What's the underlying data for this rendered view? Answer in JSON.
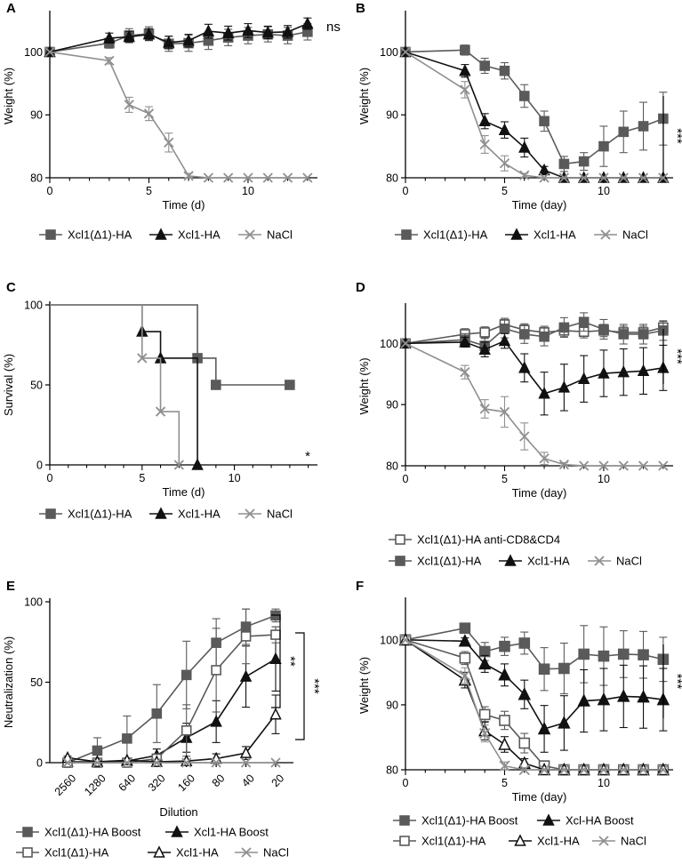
{
  "colors": {
    "dark": "#5a5a5a",
    "black": "#111111",
    "grey": "#8f8f8f"
  },
  "chart_data": [
    {
      "panel": "A",
      "type": "line",
      "xlabel": "Time (d)",
      "ylabel": "Weight (%)",
      "xlim": [
        0,
        13.5
      ],
      "ylim": [
        80,
        106
      ],
      "xticks": [
        0,
        5,
        10
      ],
      "yticks": [
        80,
        90,
        100
      ],
      "series": [
        {
          "name": "Xcl1(Δ1)-HA",
          "marker": "filled-square",
          "color": "dark",
          "x": [
            0,
            3,
            4,
            5,
            6,
            7,
            8,
            9,
            10,
            11,
            12,
            13
          ],
          "y": [
            100,
            101.4,
            102.6,
            102.9,
            101.3,
            101.4,
            101.8,
            102.3,
            102.6,
            102.8,
            102.6,
            103.2
          ],
          "err": [
            0,
            0.8,
            1.1,
            1.1,
            1.2,
            1.3,
            1.4,
            1.3,
            1.3,
            1.2,
            1.3,
            1.3
          ]
        },
        {
          "name": "Xcl1-HA",
          "marker": "filled-triangle",
          "color": "black",
          "x": [
            0,
            3,
            4,
            5,
            6,
            7,
            8,
            9,
            10,
            11,
            12,
            13
          ],
          "y": [
            100,
            102.2,
            102.4,
            102.8,
            101.5,
            101.8,
            103.3,
            103.0,
            103.4,
            103.1,
            103.2,
            104.5
          ],
          "err": [
            0,
            0.8,
            0.9,
            0.9,
            1.0,
            1.0,
            1.1,
            1.1,
            1.1,
            1.0,
            1.0,
            0.9
          ]
        },
        {
          "name": "NaCl",
          "marker": "x",
          "color": "grey",
          "x": [
            0,
            3,
            4,
            5,
            6,
            7,
            8,
            9,
            10,
            11,
            12,
            13
          ],
          "y": [
            100,
            98.6,
            91.6,
            90.2,
            85.6,
            80.3,
            80,
            80,
            80,
            80,
            80,
            80
          ],
          "err": [
            0,
            0.5,
            1.2,
            1.1,
            1.5,
            0.4,
            0,
            0,
            0,
            0,
            0,
            0
          ]
        }
      ],
      "annotation": "ns",
      "legend": [
        "Xcl1(Δ1)-HA",
        "Xcl1-HA",
        "NaCl"
      ]
    },
    {
      "panel": "B",
      "type": "line",
      "xlabel": "Time (day)",
      "ylabel": "Weight (%)",
      "xlim": [
        0,
        13.5
      ],
      "ylim": [
        80,
        106
      ],
      "xticks": [
        0,
        5,
        10
      ],
      "yticks": [
        80,
        90,
        100
      ],
      "series": [
        {
          "name": "Xcl1(Δ1)-HA",
          "marker": "filled-square",
          "color": "dark",
          "x": [
            0,
            3,
            4,
            5,
            6,
            7,
            8,
            9,
            10,
            11,
            12,
            13
          ],
          "y": [
            100,
            100.3,
            97.8,
            97,
            93,
            89,
            82.2,
            82.6,
            85,
            87.3,
            88.2,
            89.4
          ],
          "err": [
            0,
            0.8,
            1.2,
            1.3,
            1.8,
            1.6,
            1.2,
            1.4,
            3.2,
            3.3,
            3.8,
            4.2
          ]
        },
        {
          "name": "Xcl1-HA",
          "marker": "filled-triangle",
          "color": "black",
          "x": [
            0,
            3,
            4,
            5,
            6,
            7,
            8,
            9,
            10,
            11,
            12,
            13
          ],
          "y": [
            100,
            97,
            89,
            87.6,
            84.8,
            81.2,
            80,
            80,
            80,
            80,
            80,
            80
          ],
          "err": [
            0,
            1,
            1.2,
            1.3,
            1.5,
            0.6,
            0,
            0,
            0,
            0,
            0,
            0
          ]
        },
        {
          "name": "NaCl",
          "marker": "x",
          "color": "grey",
          "x": [
            0,
            3,
            4,
            5,
            6,
            7,
            8,
            9,
            10,
            11,
            12,
            13
          ],
          "y": [
            100,
            94,
            85.3,
            82.3,
            80.4,
            80,
            80,
            80,
            80,
            80,
            80,
            80
          ],
          "err": [
            0,
            1.3,
            1.4,
            1.2,
            0.3,
            0,
            0,
            0,
            0,
            0,
            0,
            0
          ]
        }
      ],
      "annotation": "***",
      "legend": [
        "Xcl1(Δ1)-HA",
        "Xcl1-HA",
        "NaCl"
      ]
    },
    {
      "panel": "C",
      "type": "step",
      "xlabel": "Time (d)",
      "ylabel": "Survival (%)",
      "xlim": [
        0,
        14.5
      ],
      "ylim": [
        0,
        100
      ],
      "xticks": [
        0,
        5,
        10
      ],
      "yticks": [
        0,
        50,
        100
      ],
      "series": [
        {
          "name": "Xcl1(Δ1)-HA",
          "marker": "filled-square",
          "color": "dark",
          "steps": [
            [
              0,
              100
            ],
            [
              8,
              66.7
            ],
            [
              9,
              50
            ],
            [
              13,
              50
            ]
          ],
          "points": [
            [
              8,
              66.7
            ],
            [
              9,
              50
            ],
            [
              13,
              50
            ]
          ]
        },
        {
          "name": "Xcl1-HA",
          "marker": "filled-triangle",
          "color": "black",
          "steps": [
            [
              0,
              100
            ],
            [
              5,
              83.3
            ],
            [
              6,
              66.7
            ],
            [
              8,
              0
            ]
          ],
          "points": [
            [
              5,
              83.3
            ],
            [
              6,
              66.7
            ],
            [
              8,
              0
            ]
          ]
        },
        {
          "name": "NaCl",
          "marker": "x",
          "color": "grey",
          "steps": [
            [
              0,
              100
            ],
            [
              5,
              66.7
            ],
            [
              6,
              33.3
            ],
            [
              7,
              0
            ]
          ],
          "points": [
            [
              5,
              66.7
            ],
            [
              6,
              33.3
            ],
            [
              7,
              0
            ]
          ]
        }
      ],
      "annotation": "*",
      "legend": [
        "Xcl1(Δ1)-HA",
        "Xcl1-HA",
        "NaCl"
      ]
    },
    {
      "panel": "D",
      "type": "line",
      "xlabel": "Time (day)",
      "ylabel": "Weight (%)",
      "xlim": [
        0,
        13.5
      ],
      "ylim": [
        80,
        106
      ],
      "xticks": [
        0,
        5,
        10
      ],
      "yticks": [
        80,
        90,
        100
      ],
      "series": [
        {
          "name": "Xcl1(Δ1)-HA anti-CD8&CD4",
          "marker": "open-square",
          "color": "dark",
          "x": [
            0,
            3,
            4,
            5,
            6,
            7,
            8,
            9,
            10,
            11,
            12,
            13
          ],
          "y": [
            100,
            101.5,
            101.8,
            103.1,
            102.2,
            101.8,
            102.1,
            101.9,
            102.1,
            101.8,
            101.8,
            102.6
          ],
          "err": [
            0,
            0.9,
            0.9,
            1.0,
            1.0,
            1.0,
            1.0,
            1.0,
            1.0,
            1.0,
            1.0,
            1.0
          ]
        },
        {
          "name": "Xcl1(Δ1)-HA",
          "marker": "filled-square",
          "color": "dark",
          "x": [
            0,
            3,
            4,
            5,
            6,
            7,
            8,
            9,
            10,
            11,
            12,
            13
          ],
          "y": [
            100,
            100.6,
            99.6,
            102.4,
            101.5,
            101.1,
            102.6,
            103.5,
            102.3,
            101.5,
            101.5,
            102.1
          ],
          "err": [
            0,
            1.0,
            1.2,
            1.5,
            1.5,
            1.5,
            1.6,
            1.5,
            1.6,
            1.6,
            1.6,
            1.6
          ]
        },
        {
          "name": "Xcl1-HA",
          "marker": "filled-triangle",
          "color": "black",
          "x": [
            0,
            3,
            4,
            5,
            6,
            7,
            8,
            9,
            10,
            11,
            12,
            13
          ],
          "y": [
            100,
            100.2,
            99,
            100.4,
            96,
            91.8,
            92.8,
            94.2,
            95.1,
            95.3,
            95.5,
            96
          ],
          "err": [
            0,
            0.8,
            1.2,
            1.2,
            2.3,
            3.5,
            3.8,
            3.8,
            3.8,
            3.8,
            3.8,
            3.7
          ]
        },
        {
          "name": "NaCl",
          "marker": "x",
          "color": "grey",
          "x": [
            0,
            3,
            4,
            5,
            6,
            7,
            8,
            9,
            10,
            11,
            12,
            13
          ],
          "y": [
            100,
            95.3,
            89.3,
            88.8,
            84.8,
            81.2,
            80.2,
            80,
            80,
            80,
            80,
            80
          ],
          "err": [
            0,
            1.1,
            1.5,
            2.5,
            2.2,
            1,
            0.3,
            0,
            0,
            0,
            0,
            0
          ]
        }
      ],
      "annotation": "***",
      "legend": [
        "Xcl1(Δ1)-HA anti-CD8&CD4",
        "Xcl1(Δ1)-HA",
        "Xcl1-HA",
        "NaCl"
      ]
    },
    {
      "panel": "E",
      "type": "line",
      "xlabel": "Dilution",
      "ylabel": "Neutralization (%)",
      "categories": [
        "2560",
        "1280",
        "640",
        "320",
        "160",
        "80",
        "40",
        "20"
      ],
      "ylim": [
        0,
        100
      ],
      "yticks": [
        0,
        50,
        100
      ],
      "series": [
        {
          "name": "Xcl1(Δ1)-HA Boost",
          "marker": "filled-square",
          "color": "dark",
          "y": [
            0,
            7.5,
            15,
            30.5,
            54.5,
            74.5,
            84.5,
            91.5
          ],
          "err": [
            0,
            8,
            14,
            18,
            21,
            15,
            11,
            4
          ]
        },
        {
          "name": "Xcl1-HA Boost",
          "marker": "filled-triangle",
          "color": "black",
          "y": [
            0.5,
            0.5,
            1,
            4.5,
            15.5,
            25.5,
            53.5,
            64.5
          ],
          "err": [
            1,
            1,
            1,
            4,
            9,
            13,
            19,
            20
          ]
        },
        {
          "name": "Xcl1(Δ1)-HA",
          "marker": "open-square",
          "color": "dark",
          "y": [
            0,
            0,
            0,
            2.5,
            20,
            57.5,
            78.5,
            79.5
          ],
          "err": [
            0,
            1,
            1,
            3,
            16,
            26,
            17,
            5
          ]
        },
        {
          "name": "Xcl1-HA",
          "marker": "open-triangle",
          "color": "black",
          "y": [
            3,
            0.5,
            1.5,
            0.5,
            1,
            2.5,
            6,
            30
          ],
          "err": [
            1,
            1,
            1,
            1,
            1,
            3,
            4,
            12
          ]
        },
        {
          "name": "NaCl",
          "marker": "x",
          "color": "grey",
          "y": [
            0,
            0,
            0,
            0,
            0,
            0,
            0,
            0
          ],
          "err": [
            0,
            0,
            0,
            0,
            0,
            0,
            0,
            0
          ]
        }
      ],
      "annotations": [
        "**",
        "***"
      ],
      "legend": [
        "Xcl1(Δ1)-HA Boost",
        "Xcl1-HA Boost",
        "Xcl1(Δ1)-HA",
        "Xcl1-HA",
        "NaCl"
      ]
    },
    {
      "panel": "F",
      "type": "line",
      "xlabel": "Time (day)",
      "ylabel": "Weight (%)",
      "xlim": [
        0,
        13.5
      ],
      "ylim": [
        80,
        106
      ],
      "xticks": [
        0,
        5,
        10
      ],
      "yticks": [
        80,
        90,
        100
      ],
      "series": [
        {
          "name": "Xcl1(Δ1)-HA Boost",
          "marker": "filled-square",
          "color": "dark",
          "x": [
            0,
            3,
            4,
            5,
            6,
            7,
            8,
            9,
            10,
            11,
            12,
            13
          ],
          "y": [
            100,
            101.8,
            98.2,
            99,
            99.5,
            95.5,
            95.6,
            97.8,
            97.5,
            97.8,
            97.7,
            97
          ],
          "err": [
            0,
            0.3,
            1.4,
            1.4,
            1.7,
            3.3,
            3.9,
            4.4,
            4.5,
            3.6,
            3.6,
            3.4
          ]
        },
        {
          "name": "Xcl-HA Boost",
          "marker": "filled-triangle",
          "color": "black",
          "x": [
            0,
            3,
            4,
            5,
            6,
            7,
            8,
            9,
            10,
            11,
            12,
            13
          ],
          "y": [
            100,
            99.8,
            96.3,
            94.6,
            91.6,
            86.3,
            87.2,
            90.6,
            90.8,
            91.3,
            91.2,
            90.8
          ],
          "err": [
            0,
            0.5,
            1.3,
            1.7,
            2.2,
            3.6,
            4.2,
            4.8,
            4.8,
            4.8,
            4.8,
            4.8
          ]
        },
        {
          "name": "Xcl1(Δ1)-HA",
          "marker": "open-square",
          "color": "dark",
          "x": [
            0,
            3,
            4,
            5,
            6,
            7,
            8,
            9,
            10,
            11,
            12,
            13
          ],
          "y": [
            100,
            97.2,
            88.5,
            87.6,
            84.1,
            80.6,
            80,
            80,
            80,
            80,
            80,
            80
          ],
          "err": [
            0,
            1,
            1.2,
            1.4,
            1.5,
            0.6,
            0,
            0,
            0,
            0,
            0,
            0
          ]
        },
        {
          "name": "Xcl1-HA",
          "marker": "open-triangle",
          "color": "black",
          "x": [
            0,
            3,
            4,
            5,
            6,
            7,
            8,
            9,
            10,
            11,
            12,
            13
          ],
          "y": [
            100,
            93.8,
            86,
            83.9,
            81,
            80,
            80,
            80,
            80,
            80,
            80,
            80
          ],
          "err": [
            0,
            1.2,
            1.4,
            1.2,
            0.7,
            0,
            0,
            0,
            0,
            0,
            0,
            0
          ]
        },
        {
          "name": "NaCl",
          "marker": "x",
          "color": "grey",
          "x": [
            0,
            3,
            4,
            5,
            6,
            7,
            8,
            9,
            10,
            11,
            12,
            13
          ],
          "y": [
            100,
            94.5,
            85.6,
            80.6,
            80,
            80,
            80,
            80,
            80,
            80,
            80,
            80
          ],
          "err": [
            0,
            1.2,
            1.3,
            0.6,
            0,
            0,
            0,
            0,
            0,
            0,
            0,
            0
          ]
        }
      ],
      "annotation": "***",
      "legend": [
        "Xcl1(Δ1)-HA Boost",
        "Xcl-HA Boost",
        "Xcl1(Δ1)-HA",
        "Xcl1-HA",
        "NaCl"
      ]
    }
  ]
}
